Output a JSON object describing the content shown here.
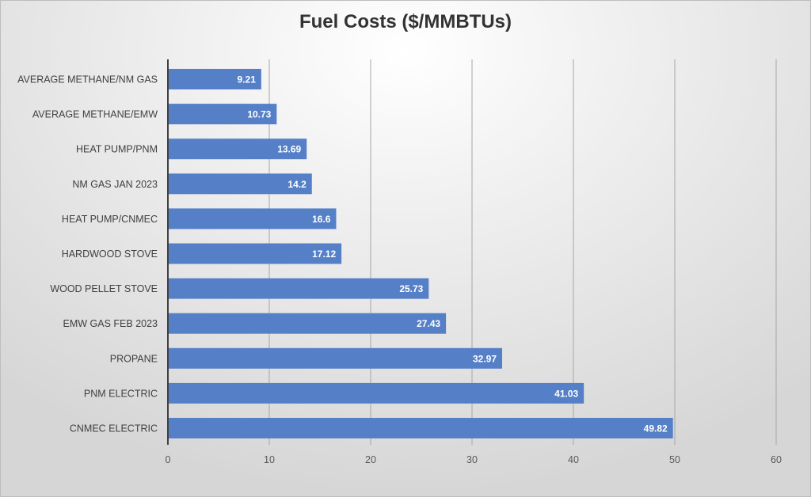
{
  "chart_data": {
    "type": "bar",
    "orientation": "horizontal",
    "title": "Fuel Costs ($/MMBTUs)",
    "categories": [
      "AVERAGE METHANE/NM GAS",
      "AVERAGE METHANE/EMW",
      "HEAT PUMP/PNM",
      "NM GAS JAN 2023",
      "HEAT PUMP/CNMEC",
      "HARDWOOD STOVE",
      "WOOD PELLET STOVE",
      "EMW GAS FEB 2023",
      "PROPANE",
      "PNM ELECTRIC",
      "CNMEC ELECTRIC"
    ],
    "values": [
      9.21,
      10.73,
      13.69,
      14.2,
      16.6,
      17.12,
      25.73,
      27.43,
      32.97,
      41.03,
      49.82
    ],
    "value_labels": [
      "9.21",
      "10.73",
      "13.69",
      "14.2",
      "16.6",
      "17.12",
      "25.73",
      "27.43",
      "32.97",
      "41.03",
      "49.82"
    ],
    "xlim": [
      0,
      60
    ],
    "xticks": [
      "0",
      "10",
      "20",
      "30",
      "40",
      "50",
      "60"
    ],
    "xlabel": "",
    "ylabel": "",
    "grid": "vertical",
    "bar_color": "#5580c8"
  }
}
